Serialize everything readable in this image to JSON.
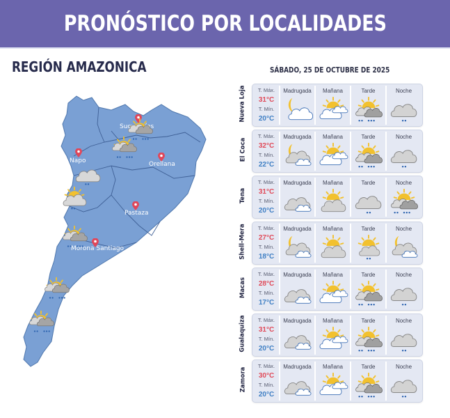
{
  "header": {
    "title": "PRONÓSTICO POR LOCALIDADES"
  },
  "region_title": "REGIÓN AMAZONICA",
  "date": "SÁBADO, 25 DE OCTUBRE DE 2025",
  "labels": {
    "tmax": "T. Máx.",
    "tmin": "T. Mín."
  },
  "periods": [
    "Madrugada",
    "Mañana",
    "Tarde",
    "Noche"
  ],
  "colors": {
    "banner": "#6b65ad",
    "map_fill": "#7aa0d4",
    "tmax": "#e04b5a",
    "tmin": "#3f7fc4",
    "card_bg": "#e4e8f3"
  },
  "map": {
    "labels": [
      {
        "name": "Sucumbíos"
      },
      {
        "name": "Napo"
      },
      {
        "name": "Orellana"
      },
      {
        "name": "Pastaza"
      },
      {
        "name": "Morona Santiago"
      }
    ]
  },
  "locations": [
    {
      "name": "Nueva Loja",
      "tmax": "31°C",
      "tmin": "20°C",
      "icons": [
        "moon-partly-cloudy-icon",
        "sun-partly-cloudy-icon",
        "sun-thunder-rain-icon",
        "cloud-light-rain-icon"
      ]
    },
    {
      "name": "El Coca",
      "tmax": "32°C",
      "tmin": "22°C",
      "icons": [
        "moon-cloudy-icon",
        "sun-partly-cloudy-icon",
        "sun-thunder-rain-icon",
        "cloud-light-rain-icon"
      ]
    },
    {
      "name": "Tena",
      "tmax": "31°C",
      "tmin": "20°C",
      "icons": [
        "cloudy-icon",
        "sun-behind-cloud-icon",
        "cloud-light-rain-icon",
        "sun-thunder-rain-icon"
      ]
    },
    {
      "name": "Shell-Mera",
      "tmax": "27°C",
      "tmin": "18°C",
      "icons": [
        "moon-cloudy-icon",
        "sun-behind-cloud-icon",
        "sun-cloud-light-rain-icon",
        "moon-cloudy-icon"
      ]
    },
    {
      "name": "Macas",
      "tmax": "28°C",
      "tmin": "17°C",
      "icons": [
        "cloudy-icon",
        "sun-partly-cloudy-icon",
        "sun-thunder-rain-icon",
        "cloud-light-rain-icon"
      ]
    },
    {
      "name": "Gualaquiza",
      "tmax": "31°C",
      "tmin": "20°C",
      "icons": [
        "cloudy-icon",
        "sun-partly-cloudy-icon",
        "sun-thunder-rain-icon",
        "cloud-light-rain-icon"
      ]
    },
    {
      "name": "Zamora",
      "tmax": "30°C",
      "tmin": "20°C",
      "icons": [
        "cloudy-icon",
        "sun-partly-cloudy-icon",
        "sun-thunder-rain-icon",
        "cloud-light-rain-icon"
      ]
    }
  ]
}
